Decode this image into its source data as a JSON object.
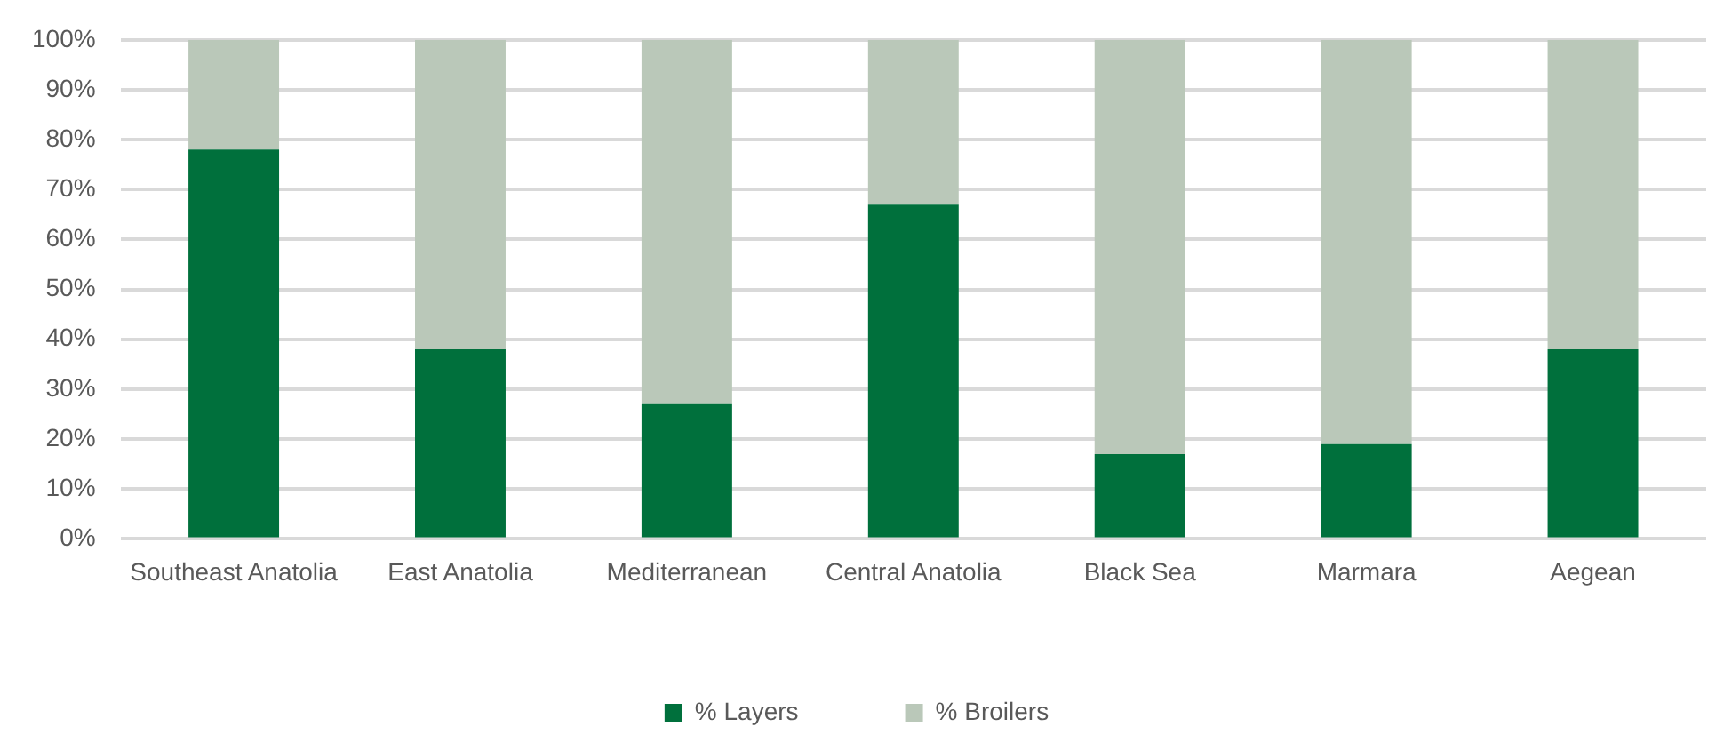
{
  "chart_data": {
    "type": "bar",
    "stacked": true,
    "categories": [
      "Southeast Anatolia",
      "East Anatolia",
      "Mediterranean",
      "Central Anatolia",
      "Black Sea",
      "Marmara",
      "Aegean"
    ],
    "series": [
      {
        "name": "% Layers",
        "color": "#00703c",
        "values": [
          78,
          38,
          27,
          67,
          17,
          19,
          38
        ]
      },
      {
        "name": "% Broilers",
        "color": "#bac8b9",
        "values": [
          22,
          62,
          73,
          33,
          83,
          81,
          62
        ]
      }
    ],
    "ylim": [
      0,
      100
    ],
    "yticks": [
      {
        "value": 0,
        "label": "0%"
      },
      {
        "value": 10,
        "label": "10%"
      },
      {
        "value": 20,
        "label": "20%"
      },
      {
        "value": 30,
        "label": "30%"
      },
      {
        "value": 40,
        "label": "40%"
      },
      {
        "value": 50,
        "label": "50%"
      },
      {
        "value": 60,
        "label": "60%"
      },
      {
        "value": 70,
        "label": "70%"
      },
      {
        "value": 80,
        "label": "80%"
      },
      {
        "value": 90,
        "label": "90%"
      },
      {
        "value": 100,
        "label": "100%"
      }
    ],
    "grid": "y",
    "legend": "bottom"
  }
}
